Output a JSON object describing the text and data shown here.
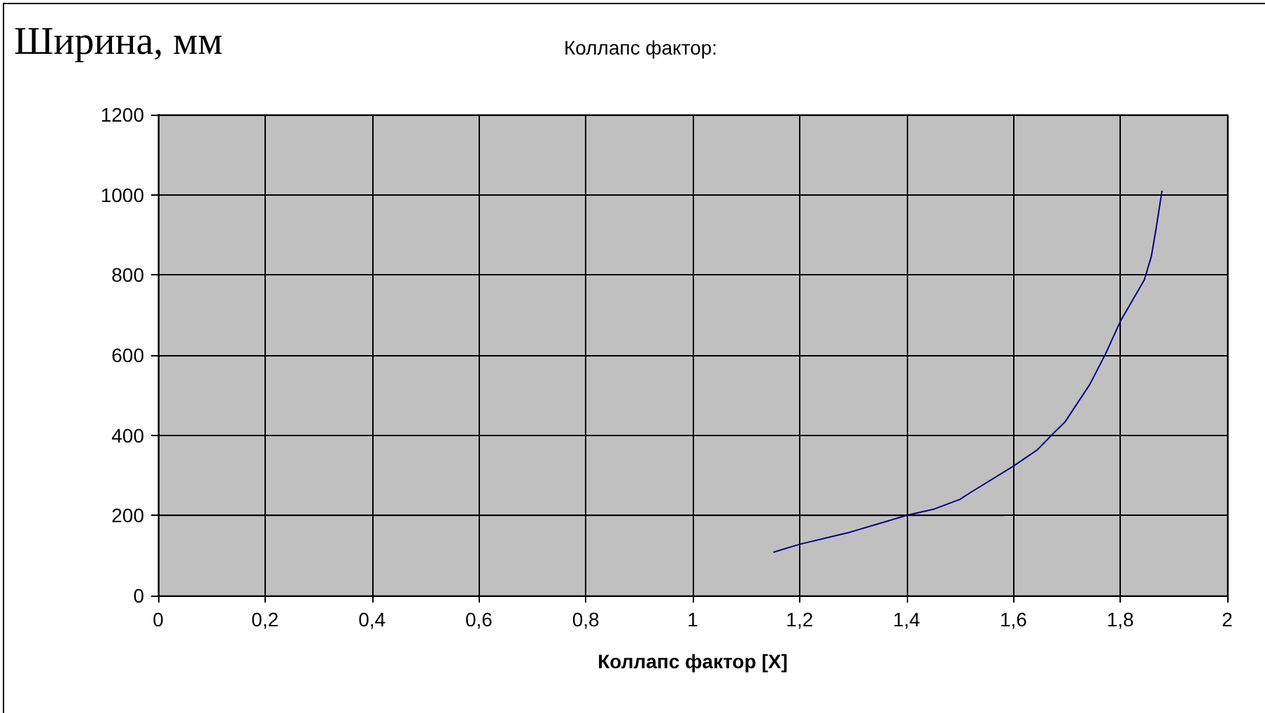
{
  "chart_data": {
    "type": "line",
    "title": "Коллапс фактор:",
    "ylabel": "Ширина, мм",
    "xlabel": "Коллапс фактор [X]",
    "series": [
      {
        "color": "#000080",
        "x": [
          1.151,
          1.2,
          1.294,
          1.4,
          1.452,
          1.5,
          1.522,
          1.6,
          1.645,
          1.675,
          1.697,
          1.743,
          1.772,
          1.8,
          1.845,
          1.858,
          1.867,
          1.878
        ],
        "values": [
          108,
          128,
          158,
          200,
          216,
          240,
          259,
          323,
          364,
          405,
          434,
          527,
          602,
          684,
          788,
          846,
          916,
          1010
        ]
      },
      {
        "color": "#000000",
        "x": [
          0,
          1.583
        ],
        "values": [
          200,
          200
        ]
      }
    ],
    "xlim": [
      0,
      2
    ],
    "xticks": [
      0,
      {
        "value": 0.2,
        "label": "0,2"
      },
      {
        "value": 0.4,
        "label": "0,4"
      },
      {
        "value": 0.6,
        "label": "0,6"
      },
      {
        "value": 0.8,
        "label": "0,8"
      },
      1,
      {
        "value": 1.2,
        "label": "1,2"
      },
      {
        "value": 1.4,
        "label": "1,4"
      },
      {
        "value": 1.6,
        "label": "1,6"
      },
      {
        "value": 1.8,
        "label": "1,8"
      },
      2
    ],
    "ylim": [
      0,
      1200
    ],
    "yticks": [
      0,
      200,
      400,
      600,
      800,
      1000,
      1200
    ],
    "grid": true,
    "marker": "none",
    "line_style": "solid"
  }
}
